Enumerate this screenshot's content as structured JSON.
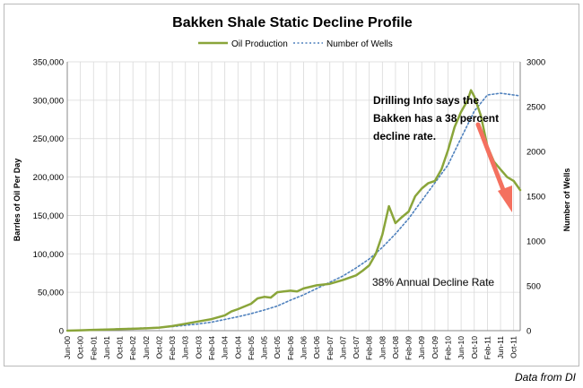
{
  "chart_data": {
    "type": "line",
    "title": "Bakken Shale Static Decline Profile",
    "ylabel": "Barrles of Oil Per Day",
    "y2label": "Number of Wells",
    "ylim": [
      0,
      350000
    ],
    "y2lim": [
      0,
      3000
    ],
    "yticks": [
      "0",
      "50,000",
      "100,000",
      "150,000",
      "200,000",
      "250,000",
      "300,000",
      "350,000"
    ],
    "y2ticks": [
      "0",
      "500",
      "1000",
      "1500",
      "2000",
      "2500",
      "3000"
    ],
    "x_tick_labels": [
      "Jun-00",
      "Oct-00",
      "Feb-01",
      "Jun-01",
      "Oct-01",
      "Feb-02",
      "Jun-02",
      "Oct-02",
      "Feb-03",
      "Jun-03",
      "Oct-03",
      "Feb-04",
      "Jun-04",
      "Oct-04",
      "Feb-05",
      "Jun-05",
      "Oct-05",
      "Feb-06",
      "Jun-06",
      "Oct-06",
      "Feb-07",
      "Jun-07",
      "Oct-07",
      "Feb-08",
      "Jun-08",
      "Oct-08",
      "Feb-09",
      "Jun-09",
      "Oct-09",
      "Feb-10",
      "Jun-10",
      "Oct-10",
      "Feb-11",
      "Jun-11",
      "Oct-11"
    ],
    "grid": true,
    "legend_position": "top-center",
    "series": [
      {
        "name": "Oil Production",
        "axis": "left",
        "color": "#8aa53a",
        "style": "solid",
        "points": [
          [
            "Jun-00",
            0
          ],
          [
            "Oct-00",
            500
          ],
          [
            "Feb-01",
            1000
          ],
          [
            "Jun-01",
            1500
          ],
          [
            "Oct-01",
            2000
          ],
          [
            "Feb-02",
            2500
          ],
          [
            "Jun-02",
            3000
          ],
          [
            "Oct-02",
            4000
          ],
          [
            "Feb-03",
            6000
          ],
          [
            "Jun-03",
            9000
          ],
          [
            "Oct-03",
            12000
          ],
          [
            "Feb-04",
            15000
          ],
          [
            "Jun-04",
            20000
          ],
          [
            "Aug-04",
            25000
          ],
          [
            "Oct-04",
            28000
          ],
          [
            "Feb-05",
            35000
          ],
          [
            "Apr-05",
            42000
          ],
          [
            "Jun-05",
            44000
          ],
          [
            "Aug-05",
            43000
          ],
          [
            "Oct-05",
            50000
          ],
          [
            "Feb-06",
            52000
          ],
          [
            "Apr-06",
            51000
          ],
          [
            "Jun-06",
            55000
          ],
          [
            "Oct-06",
            59000
          ],
          [
            "Feb-07",
            61000
          ],
          [
            "Jun-07",
            66000
          ],
          [
            "Oct-07",
            72000
          ],
          [
            "Dec-07",
            78000
          ],
          [
            "Feb-08",
            85000
          ],
          [
            "Apr-08",
            100000
          ],
          [
            "Jun-08",
            125000
          ],
          [
            "Aug-08",
            162000
          ],
          [
            "Oct-08",
            140000
          ],
          [
            "Dec-08",
            148000
          ],
          [
            "Feb-09",
            155000
          ],
          [
            "Apr-09",
            175000
          ],
          [
            "Jun-09",
            185000
          ],
          [
            "Aug-09",
            192000
          ],
          [
            "Oct-09",
            195000
          ],
          [
            "Dec-09",
            210000
          ],
          [
            "Feb-10",
            235000
          ],
          [
            "Apr-10",
            265000
          ],
          [
            "Jun-10",
            285000
          ],
          [
            "Aug-10",
            300000
          ],
          [
            "Sep-10",
            313000
          ],
          [
            "Oct-10",
            305000
          ],
          [
            "Dec-10",
            280000
          ],
          [
            "Feb-11",
            240000
          ],
          [
            "Apr-11",
            220000
          ],
          [
            "Jun-11",
            210000
          ],
          [
            "Aug-11",
            200000
          ],
          [
            "Oct-11",
            195000
          ],
          [
            "Dec-11",
            183000
          ]
        ]
      },
      {
        "name": "Number of Wells",
        "axis": "right",
        "color": "#4f81bd",
        "style": "dotted",
        "points": [
          [
            "Jun-00",
            0
          ],
          [
            "Oct-00",
            5
          ],
          [
            "Feb-01",
            10
          ],
          [
            "Jun-01",
            15
          ],
          [
            "Oct-01",
            20
          ],
          [
            "Feb-02",
            25
          ],
          [
            "Jun-02",
            30
          ],
          [
            "Oct-02",
            35
          ],
          [
            "Feb-03",
            45
          ],
          [
            "Jun-03",
            60
          ],
          [
            "Oct-03",
            75
          ],
          [
            "Feb-04",
            95
          ],
          [
            "Jun-04",
            125
          ],
          [
            "Oct-04",
            155
          ],
          [
            "Feb-05",
            190
          ],
          [
            "Jun-05",
            230
          ],
          [
            "Oct-05",
            275
          ],
          [
            "Feb-06",
            340
          ],
          [
            "Jun-06",
            400
          ],
          [
            "Oct-06",
            470
          ],
          [
            "Feb-07",
            540
          ],
          [
            "Jun-07",
            610
          ],
          [
            "Oct-07",
            700
          ],
          [
            "Feb-08",
            800
          ],
          [
            "Jun-08",
            930
          ],
          [
            "Oct-08",
            1080
          ],
          [
            "Feb-09",
            1250
          ],
          [
            "Jun-09",
            1450
          ],
          [
            "Oct-09",
            1650
          ],
          [
            "Feb-10",
            1850
          ],
          [
            "Jun-10",
            2150
          ],
          [
            "Oct-10",
            2450
          ],
          [
            "Feb-11",
            2630
          ],
          [
            "Jun-11",
            2650
          ],
          [
            "Oct-11",
            2630
          ],
          [
            "Dec-11",
            2620
          ]
        ]
      }
    ],
    "annotations": [
      {
        "text": "Drilling Info says the Bakken has a 38 percent decline rate.",
        "lines": [
          "Drilling Info says the",
          "Bakken has a 38 percent",
          "decline rate."
        ]
      },
      {
        "text": "38% Annual Decline Rate"
      }
    ],
    "arrow_color": "#f4705f",
    "source": "Data from DI"
  }
}
